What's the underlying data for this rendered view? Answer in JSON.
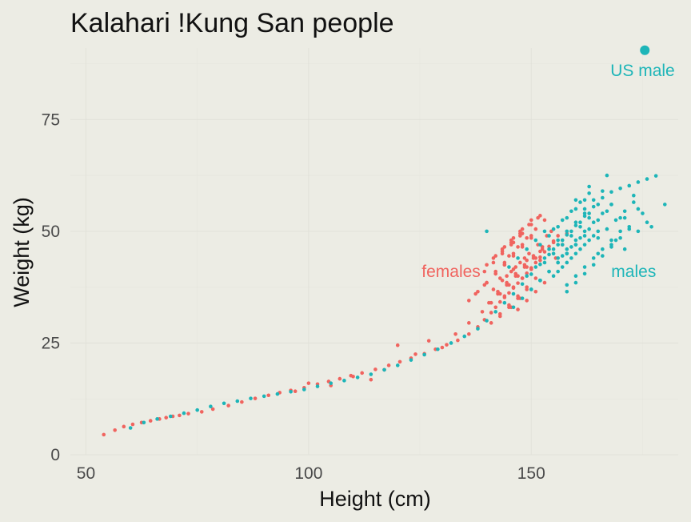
{
  "chart_data": {
    "type": "scatter",
    "title": "Kalahari !Kung San people",
    "xlabel": "Height (cm)",
    "ylabel": "Weight (kg)",
    "xlim": [
      46.5,
      183
    ],
    "ylim": [
      0,
      91
    ],
    "x_ticks": [
      50,
      100,
      150
    ],
    "y_ticks": [
      0,
      25,
      50,
      75
    ],
    "x_tick_labels": [
      "50",
      "100",
      "150"
    ],
    "y_tick_labels": [
      "0",
      "25",
      "50",
      "75"
    ],
    "grid": true,
    "legend": "none",
    "colors": {
      "female": "#f0645f",
      "male": "#1db5b8",
      "background": "#ecece4"
    },
    "annotations": [
      {
        "text": "females",
        "x": 132,
        "y": 41,
        "series": "female"
      },
      {
        "text": "males",
        "x": 173,
        "y": 41,
        "series": "male"
      },
      {
        "text": "US male",
        "x": 175,
        "y": 86,
        "series": "male"
      }
    ],
    "highlight": {
      "label": "US male",
      "x": 175.5,
      "y": 90.5
    },
    "series": [
      {
        "name": "females",
        "color": "#f0645f",
        "x": [
          54,
          56.5,
          58.5,
          60.5,
          62.5,
          64.5,
          66.5,
          68,
          69.5,
          71,
          73,
          76,
          78.5,
          82,
          85,
          88,
          91,
          93.5,
          96,
          99,
          102,
          104.5,
          107,
          109.5,
          112,
          115,
          118,
          120.5,
          123,
          126,
          128.5,
          131,
          133.5,
          136,
          138,
          139.5,
          141,
          142,
          143,
          144,
          145,
          146,
          147,
          148,
          149,
          150,
          151,
          152,
          153,
          154,
          155,
          140.5,
          142.5,
          144.5,
          146.5,
          148.5,
          150.5,
          152.5,
          141.5,
          143.5,
          145.5,
          147.5,
          149.5,
          151.5,
          153.5,
          139,
          141,
          143,
          145,
          147,
          149,
          151,
          142,
          144,
          146,
          148,
          150,
          144,
          146,
          148,
          150,
          152,
          145,
          147,
          149,
          151,
          153,
          143,
          145,
          147,
          149,
          146,
          148,
          150,
          152,
          147,
          149,
          151,
          153,
          144.5,
          146.5,
          148.5,
          140,
          142,
          144,
          146,
          148,
          150,
          137.5,
          139.5,
          143.5,
          145.5,
          147.5,
          149.5,
          151.5,
          154.5,
          156,
          157,
          155.5,
          141,
          143,
          145,
          147,
          149,
          151,
          140,
          142,
          144,
          146,
          148,
          150,
          136,
          138,
          140,
          142,
          144,
          145.5,
          147.5,
          141.5,
          143.5,
          145.5,
          147.5,
          142.5,
          144.5,
          146.5,
          148.5,
          150.5,
          152.5,
          143,
          146,
          149,
          152,
          155,
          158,
          139.5,
          141.5,
          143.5,
          145.5,
          147.5,
          120,
          124,
          127,
          130,
          133,
          136,
          97,
          100,
          105,
          110,
          114,
          117
        ],
        "y": [
          4.5,
          5.5,
          6.3,
          6.8,
          7.2,
          7.6,
          8,
          8.3,
          8.6,
          8.8,
          9.2,
          9.6,
          10.2,
          11,
          11.8,
          12.6,
          13.3,
          13.9,
          14.4,
          15,
          15.8,
          16.4,
          17,
          17.7,
          18.3,
          19.1,
          20,
          20.8,
          21.6,
          22.6,
          23.6,
          24.6,
          25.6,
          27,
          28.6,
          30.2,
          31.8,
          33,
          34.2,
          35.2,
          36.2,
          37.3,
          38.4,
          39.5,
          40.6,
          41.8,
          43,
          44.2,
          45.4,
          46.6,
          47.8,
          34,
          36,
          38,
          40,
          42,
          44,
          46,
          37,
          39,
          41,
          43,
          45,
          47,
          49,
          32,
          34,
          36,
          38,
          40,
          42,
          44,
          41,
          43,
          45,
          47,
          49,
          35.5,
          37.5,
          39.5,
          41.5,
          43.5,
          44.5,
          46.5,
          48.5,
          50.5,
          52.5,
          31,
          33,
          35,
          37,
          47.5,
          49.5,
          51.5,
          53.5,
          32.5,
          34.5,
          36.5,
          38.5,
          40,
          42,
          44,
          38.5,
          40.5,
          42.5,
          44.5,
          46.5,
          48.5,
          36,
          38,
          45.5,
          47.5,
          49.5,
          51.5,
          53,
          50,
          49,
          47,
          44,
          29.5,
          31.5,
          33.5,
          35.5,
          37.5,
          39.5,
          42.5,
          44.5,
          46.5,
          48.5,
          50.5,
          52.5,
          34.5,
          36.5,
          38.5,
          40.5,
          42.5,
          33,
          35,
          44,
          46,
          48,
          50,
          36.5,
          38.5,
          40.5,
          42.5,
          44.5,
          46.5,
          39.5,
          41.5,
          43.5,
          45.5,
          47.5,
          49.5,
          41,
          43,
          45,
          47,
          49,
          24.5,
          22.5,
          25.5,
          24,
          27,
          29.5,
          14.2,
          16,
          15.5,
          17.5,
          16.8,
          19
        ]
      },
      {
        "name": "males",
        "color": "#1db5b8",
        "x": [
          60,
          63,
          66,
          69,
          72,
          75,
          78,
          81,
          84,
          87,
          90,
          93,
          96,
          99,
          102,
          105,
          108,
          111,
          114,
          117,
          120,
          123,
          126,
          129,
          132,
          135,
          138,
          140,
          142,
          144,
          146,
          148,
          150,
          152,
          154,
          156,
          158,
          160,
          162,
          164,
          166,
          168,
          170,
          172,
          174,
          176,
          178,
          155,
          157,
          159,
          161,
          163,
          165,
          153,
          155,
          157,
          159,
          161,
          163,
          156,
          158,
          160,
          162,
          164,
          152,
          154,
          156,
          158,
          160,
          162,
          157,
          159,
          161,
          163,
          165,
          167,
          154,
          156,
          158,
          160,
          162,
          150,
          152,
          154,
          156,
          158,
          160,
          155,
          157,
          159,
          161,
          163,
          165,
          167,
          169,
          171,
          173,
          158,
          160,
          162,
          164,
          166,
          168,
          170,
          172,
          149,
          151,
          153,
          155,
          157,
          159,
          161,
          163,
          165,
          162,
          164,
          166,
          168,
          170,
          172,
          174,
          176,
          180,
          140,
          146,
          148,
          150,
          152,
          145,
          147,
          149,
          151,
          153,
          158,
          160,
          162,
          164,
          166,
          168,
          170,
          152,
          154,
          156,
          158,
          160,
          162,
          156,
          158,
          160,
          162,
          164,
          166,
          168,
          160,
          163,
          167,
          169,
          171,
          173,
          175,
          165,
          168,
          171,
          174,
          177
        ],
        "y": [
          6,
          7.2,
          8,
          8.6,
          9.3,
          10,
          10.8,
          11.5,
          12,
          12.6,
          13.1,
          13.6,
          14.1,
          14.6,
          15.3,
          16,
          16.6,
          17.3,
          18,
          19,
          20,
          21.2,
          22.4,
          23.6,
          25,
          26.5,
          28.2,
          30,
          32,
          34,
          36,
          38.2,
          40.4,
          42.6,
          44.8,
          47,
          49.2,
          51.3,
          53.4,
          55.5,
          57.5,
          58.8,
          59.6,
          60.2,
          61,
          61.7,
          62.4,
          40,
          42,
          44,
          46,
          48,
          50,
          43,
          45,
          47,
          49,
          51,
          53,
          41,
          43,
          45,
          47,
          49,
          39,
          41,
          43,
          45,
          47,
          49,
          44.5,
          46.5,
          48.5,
          50.5,
          52.5,
          54.5,
          46,
          48,
          50,
          52,
          54,
          37,
          39,
          41,
          43,
          45,
          47,
          50.5,
          52.5,
          54.5,
          56.5,
          58.5,
          48.5,
          50.5,
          52.5,
          54.5,
          56.5,
          36.5,
          38.5,
          40.5,
          42.5,
          44.5,
          46.5,
          48.5,
          50.5,
          40,
          42,
          44,
          46,
          48,
          50,
          52,
          54,
          56,
          55,
          57,
          59,
          56,
          53,
          51,
          50,
          52,
          56,
          50,
          33,
          35,
          37,
          39,
          42,
          44,
          46,
          48,
          50,
          38,
          40,
          42,
          44,
          46,
          48,
          50,
          47,
          49,
          51,
          53,
          55,
          57,
          44,
          46,
          48,
          50,
          52,
          54,
          56,
          57,
          60,
          62.5,
          48,
          46,
          58,
          54,
          45,
          47,
          53,
          55,
          51
        ]
      }
    ]
  }
}
